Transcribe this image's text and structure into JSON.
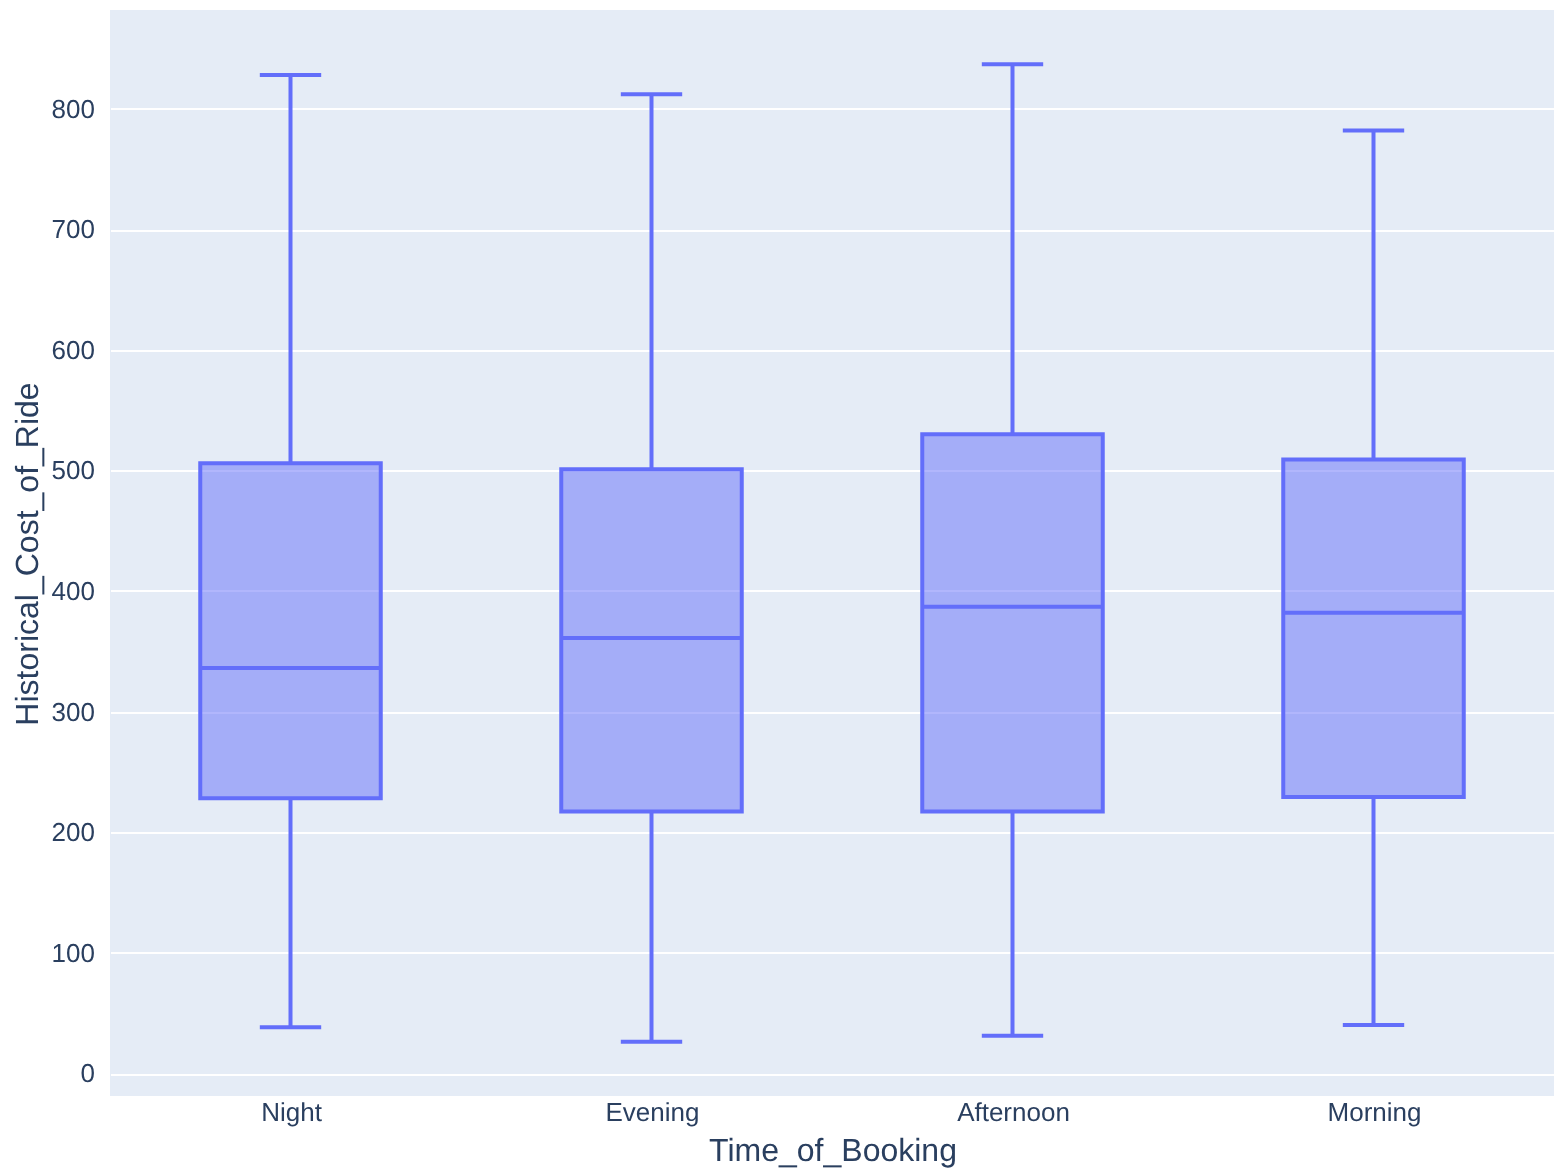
{
  "chart_data": {
    "type": "box",
    "xlabel": "Time_of_Booking",
    "ylabel": "Historical_Cost_of_Ride",
    "categories": [
      "Night",
      "Evening",
      "Afternoon",
      "Morning"
    ],
    "series": [
      {
        "color": "#636efa",
        "boxes": [
          {
            "low": 38,
            "q1": 228,
            "median": 336,
            "q3": 506,
            "high": 828
          },
          {
            "low": 26,
            "q1": 217,
            "median": 361,
            "q3": 501,
            "high": 812
          },
          {
            "low": 31,
            "q1": 217,
            "median": 387,
            "q3": 530,
            "high": 837
          },
          {
            "low": 40,
            "q1": 229,
            "median": 382,
            "q3": 509,
            "high": 782
          }
        ]
      }
    ],
    "ylim": [
      -19,
      882
    ],
    "yticks": [
      0,
      100,
      200,
      300,
      400,
      500,
      600,
      700,
      800
    ],
    "grid": "y"
  }
}
